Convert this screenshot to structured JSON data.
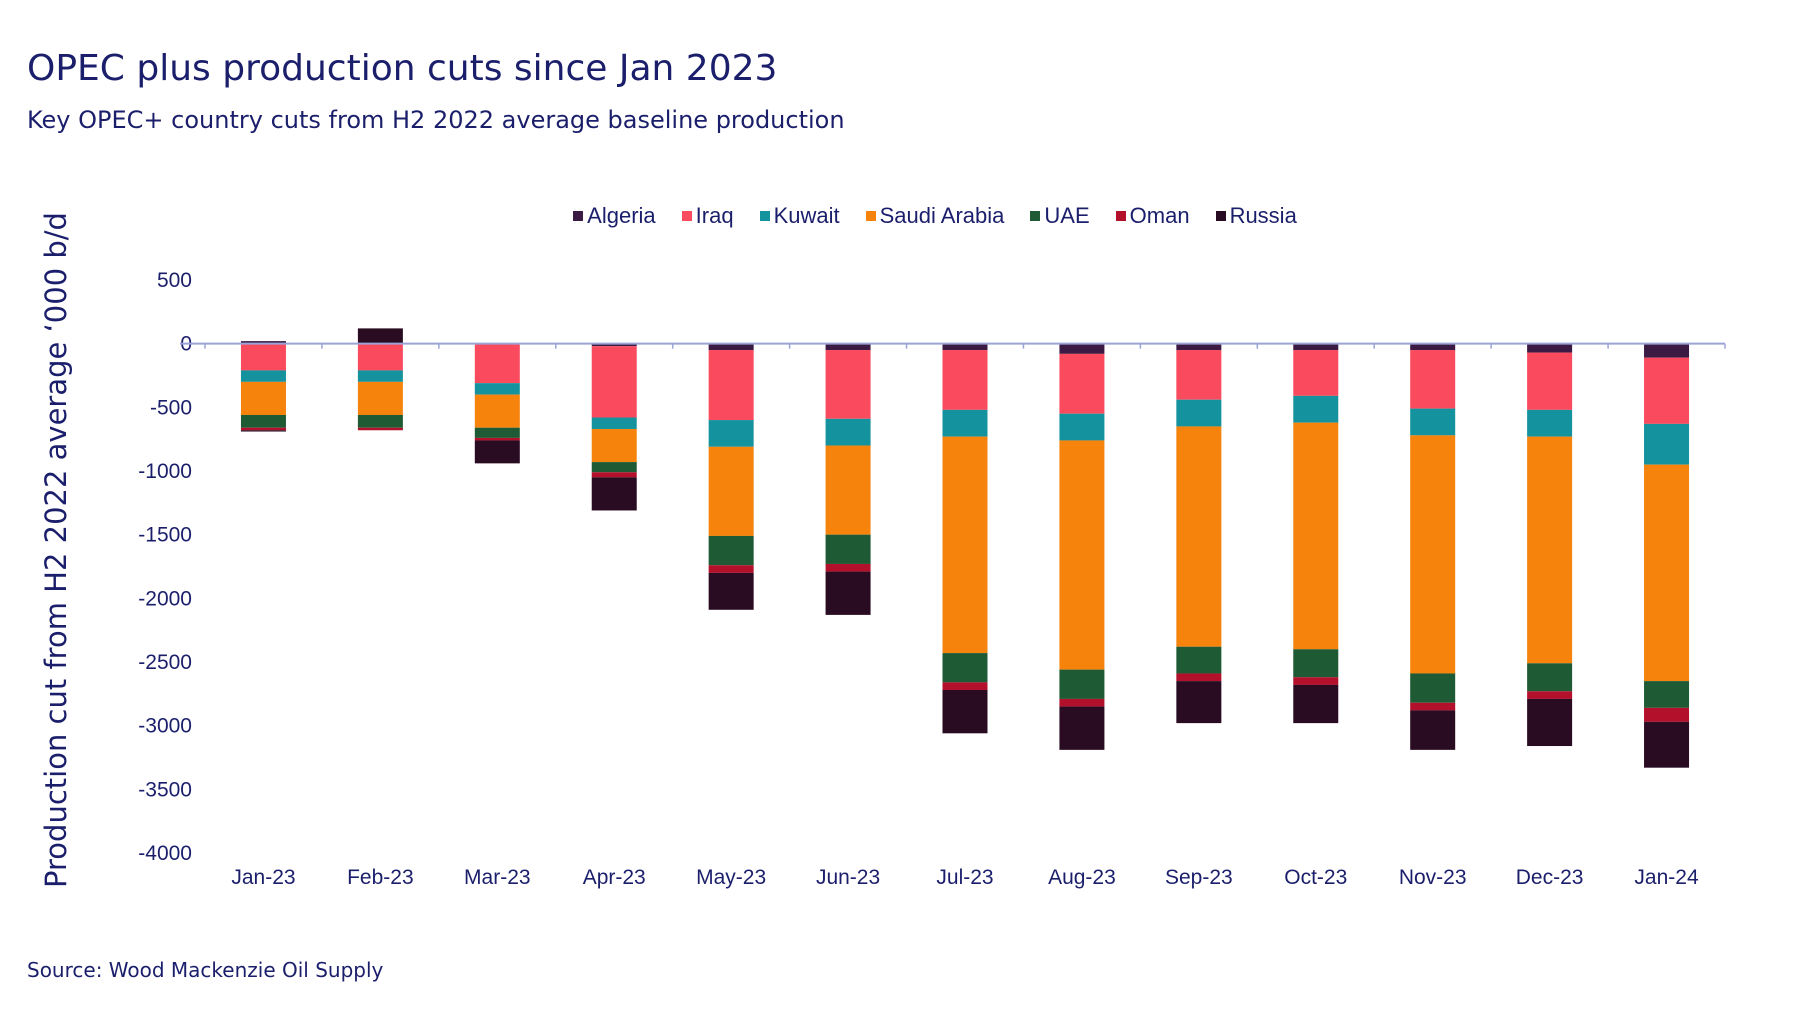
{
  "header": {
    "title": "OPEC plus production cuts since Jan 2023",
    "subtitle": "Key OPEC+ country cuts from H2 2022 average baseline production"
  },
  "footer": {
    "source": "Source: Wood Mackenzie Oil Supply"
  },
  "chart_data": {
    "type": "bar",
    "stacked": true,
    "title": "OPEC plus production cuts since Jan 2023",
    "subtitle": "Key OPEC+ country cuts from H2 2022 average baseline production",
    "xlabel": "",
    "ylabel": "Production cut from H2 2022 average ‘000 b/d",
    "ylim": [
      -4000,
      500
    ],
    "yticks": [
      500,
      0,
      -500,
      -1000,
      -1500,
      -2000,
      -2500,
      -3000,
      -3500,
      -4000
    ],
    "grid": false,
    "legend_position": "top",
    "categories": [
      "Jan-23",
      "Feb-23",
      "Mar-23",
      "Apr-23",
      "May-23",
      "Jun-23",
      "Jul-23",
      "Aug-23",
      "Sep-23",
      "Oct-23",
      "Nov-23",
      "Dec-23",
      "Jan-24"
    ],
    "series": [
      {
        "name": "Algeria",
        "color": "#3b1a44",
        "values": [
          20,
          0,
          0,
          -20,
          -50,
          -50,
          -50,
          -80,
          -50,
          -50,
          -50,
          -70,
          -110
        ]
      },
      {
        "name": "Iraq",
        "color": "#fa4a5e",
        "values": [
          -210,
          -210,
          -310,
          -560,
          -550,
          -540,
          -470,
          -470,
          -390,
          -360,
          -460,
          -450,
          -520
        ]
      },
      {
        "name": "Kuwait",
        "color": "#14939f",
        "values": [
          -90,
          -90,
          -90,
          -90,
          -210,
          -210,
          -210,
          -210,
          -210,
          -210,
          -210,
          -210,
          -320
        ]
      },
      {
        "name": "Saudi Arabia",
        "color": "#f5830c",
        "values": [
          -260,
          -260,
          -260,
          -260,
          -700,
          -700,
          -1700,
          -1800,
          -1730,
          -1780,
          -1870,
          -1780,
          -1700
        ]
      },
      {
        "name": "UAE",
        "color": "#1e5b34",
        "values": [
          -100,
          -100,
          -80,
          -80,
          -230,
          -230,
          -230,
          -230,
          -210,
          -220,
          -230,
          -220,
          -210
        ]
      },
      {
        "name": "Oman",
        "color": "#b3102c",
        "values": [
          -20,
          -20,
          -20,
          -40,
          -60,
          -60,
          -60,
          -60,
          -60,
          -60,
          -60,
          -60,
          -110
        ]
      },
      {
        "name": "Russia",
        "color": "#2a0c22",
        "values": [
          -10,
          120,
          -180,
          -260,
          -290,
          -340,
          -340,
          -340,
          -330,
          -300,
          -310,
          -370,
          -360
        ]
      }
    ]
  }
}
